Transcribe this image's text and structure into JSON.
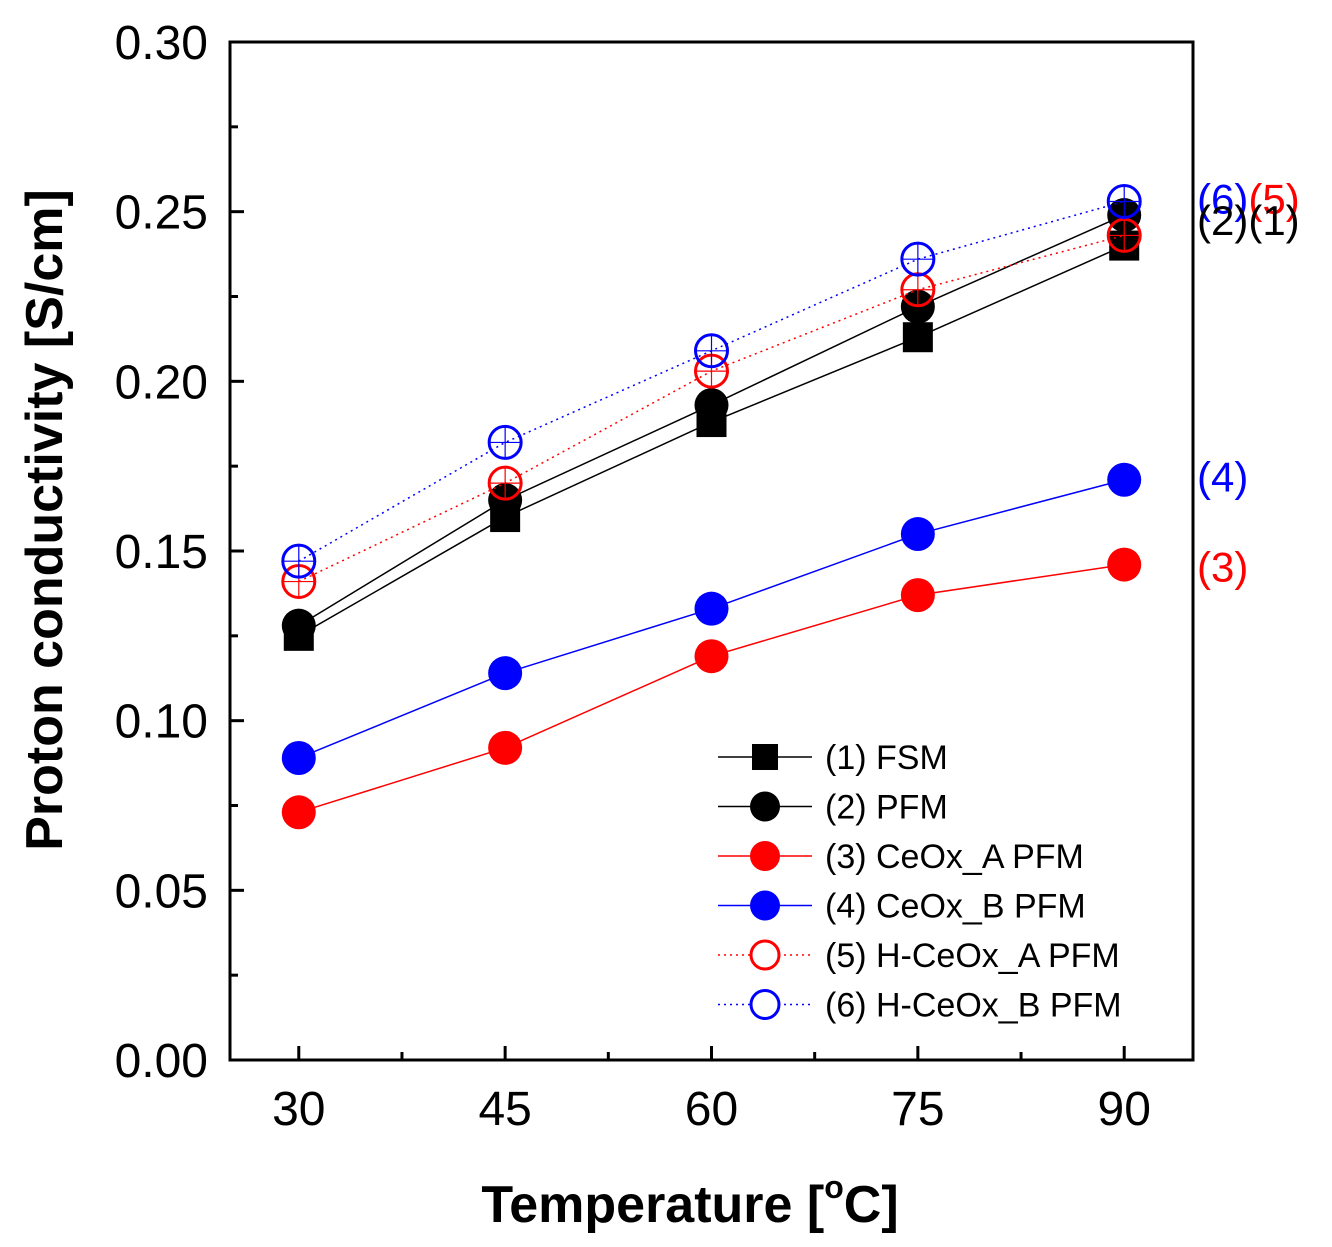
{
  "chart_data": {
    "type": "line",
    "title": "",
    "xlabel": "Temperature [",
    "xlabel_superscript": "o",
    "xlabel_suffix": "C]",
    "ylabel": "Proton conductivity [S/cm]",
    "x": [
      30,
      45,
      60,
      75,
      90
    ],
    "x_tick_labels": [
      "30",
      "45",
      "60",
      "75",
      "90"
    ],
    "xlim": [
      25,
      95
    ],
    "ylim": [
      0.0,
      0.3
    ],
    "y_ticks": [
      0.0,
      0.05,
      0.1,
      0.15,
      0.2,
      0.25,
      0.3
    ],
    "y_tick_labels": [
      "0.00",
      "0.05",
      "0.10",
      "0.15",
      "0.20",
      "0.25",
      "0.30"
    ],
    "grid": false,
    "legend_position": "bottom-right",
    "series": [
      {
        "name": "(1) FSM",
        "color": "#000000",
        "marker": "filled-square",
        "line": "solid",
        "values": [
          0.125,
          0.16,
          0.188,
          0.213,
          0.24
        ]
      },
      {
        "name": "(2) PFM",
        "color": "#000000",
        "marker": "filled-circle",
        "line": "solid",
        "values": [
          0.128,
          0.165,
          0.193,
          0.222,
          0.249
        ]
      },
      {
        "name": "(3) CeOx_A PFM",
        "color": "#ff0000",
        "marker": "filled-circle",
        "line": "solid",
        "values": [
          0.073,
          0.092,
          0.119,
          0.137,
          0.146
        ]
      },
      {
        "name": "(4) CeOx_B PFM",
        "color": "#0000ff",
        "marker": "filled-circle",
        "line": "solid",
        "values": [
          0.089,
          0.114,
          0.133,
          0.155,
          0.171
        ]
      },
      {
        "name": "(5) H-CeOx_A PFM",
        "color": "#ff0000",
        "marker": "open-circle",
        "line": "dotted",
        "values": [
          0.141,
          0.17,
          0.203,
          0.227,
          0.243
        ]
      },
      {
        "name": "(6) H-CeOx_B PFM",
        "color": "#0000ff",
        "marker": "open-circle",
        "line": "dotted",
        "values": [
          0.147,
          0.182,
          0.209,
          0.236,
          0.253
        ]
      }
    ],
    "annotations": [
      {
        "anchor_series": "(6) H-CeOx_B PFM",
        "parts": [
          {
            "text": "(6)",
            "color": "#0000ff"
          },
          {
            "text": "(5)",
            "color": "#ff0000"
          }
        ]
      },
      {
        "anchor_series": "(2) PFM",
        "parts": [
          {
            "text": "(2)(1)",
            "color": "#000000"
          }
        ]
      },
      {
        "anchor_series": "(4) CeOx_B PFM",
        "parts": [
          {
            "text": "(4)",
            "color": "#0000ff"
          }
        ]
      },
      {
        "anchor_series": "(3) CeOx_A PFM",
        "parts": [
          {
            "text": "(3)",
            "color": "#ff0000"
          }
        ]
      }
    ]
  }
}
